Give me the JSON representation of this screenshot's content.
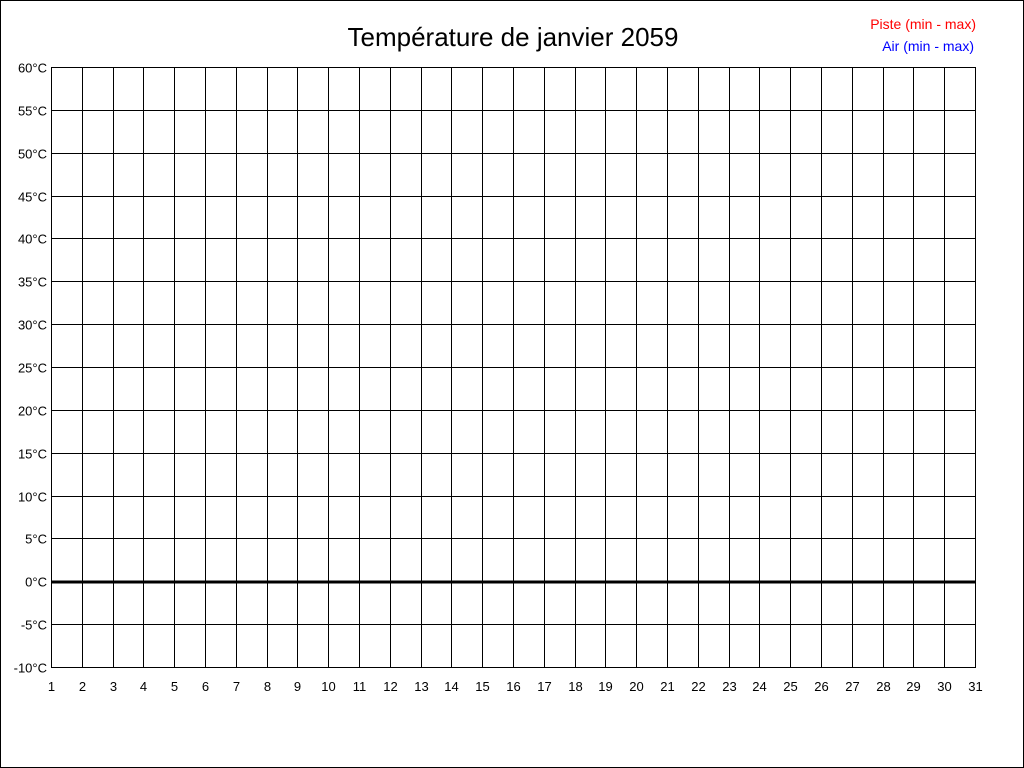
{
  "chart_data": {
    "type": "line",
    "title": "Température de janvier 2059",
    "xlabel": "",
    "ylabel": "",
    "x_ticks": [
      1,
      2,
      3,
      4,
      5,
      6,
      7,
      8,
      9,
      10,
      11,
      12,
      13,
      14,
      15,
      16,
      17,
      18,
      19,
      20,
      21,
      22,
      23,
      24,
      25,
      26,
      27,
      28,
      29,
      30,
      31
    ],
    "y_ticks": [
      "60°C",
      "55°C",
      "50°C",
      "45°C",
      "40°C",
      "35°C",
      "30°C",
      "25°C",
      "20°C",
      "15°C",
      "10°C",
      "5°C",
      "0°C",
      "-5°C",
      "-10°C"
    ],
    "xlim": [
      1,
      31
    ],
    "ylim": [
      -10,
      60
    ],
    "y_step": 5,
    "grid": true,
    "zero_line_emphasized": true,
    "legend_position": "top-right",
    "series": [
      {
        "name": "Piste (min - max)",
        "color": "#ff0000",
        "values": []
      },
      {
        "name": "Air (min - max)",
        "color": "#0000ff",
        "values": []
      }
    ]
  }
}
